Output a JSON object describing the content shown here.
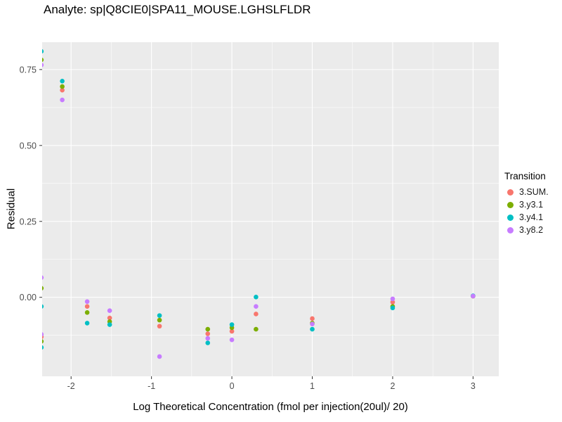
{
  "header": {
    "title": "Analyte: sp|Q8CIE0|SPA11_MOUSE.LGHSLFLDR"
  },
  "chart_data": {
    "type": "scatter",
    "title": "Analyte: sp|Q8CIE0|SPA11_MOUSE.LGHSLFLDR",
    "xlabel": "Log Theoretical Concentration (fmol per injection(20ul)/ 20)",
    "ylabel": "Residual",
    "x_domain": [
      -2.36,
      3.32
    ],
    "y_domain": [
      -0.26,
      0.84
    ],
    "x_ticks": [
      -2,
      -1,
      0,
      1,
      2,
      3
    ],
    "x_tick_labels": [
      "-2",
      "-1",
      "0",
      "1",
      "2",
      "3"
    ],
    "x_minor_ticks": [
      -1.5,
      -0.5,
      0.5,
      1.5,
      2.5
    ],
    "y_ticks": [
      0.0,
      0.25,
      0.5,
      0.75
    ],
    "y_tick_labels": [
      "0.00",
      "0.25",
      "0.50",
      "0.75"
    ],
    "y_minor_ticks": [
      -0.125,
      0.125,
      0.375,
      0.625
    ],
    "grid": true,
    "panel_bg": "#EBEBEB",
    "grid_color": "#FFFFFF",
    "tick_label_color": "#4D4D4D",
    "tick_mark_color": "#333333",
    "legend": {
      "title": "Transition",
      "position": "right"
    },
    "series": [
      {
        "name": "3.SUM.",
        "color": "#F8766D",
        "points": [
          [
            -2.11,
            0.682
          ],
          [
            -2.37,
            -0.13
          ],
          [
            -1.8,
            -0.03
          ],
          [
            -1.52,
            -0.068
          ],
          [
            -0.9,
            -0.095
          ],
          [
            -0.3,
            -0.12
          ],
          [
            0.0,
            -0.112
          ],
          [
            0.3,
            -0.055
          ],
          [
            1.0,
            -0.07
          ],
          [
            2.0,
            -0.016
          ],
          [
            3.0,
            0.004
          ]
        ]
      },
      {
        "name": "3.y3.1",
        "color": "#7CAE00",
        "points": [
          [
            -2.37,
            0.782
          ],
          [
            -2.11,
            0.694
          ],
          [
            -2.37,
            0.03
          ],
          [
            -2.37,
            -0.145
          ],
          [
            -1.8,
            -0.05
          ],
          [
            -1.52,
            -0.08
          ],
          [
            -0.9,
            -0.075
          ],
          [
            -0.3,
            -0.105
          ],
          [
            0.0,
            -0.1
          ],
          [
            0.3,
            -0.105
          ],
          [
            1.0,
            -0.085
          ],
          [
            2.0,
            -0.03
          ],
          [
            3.0,
            0.004
          ]
        ]
      },
      {
        "name": "3.y4.1",
        "color": "#00BFC4",
        "points": [
          [
            -2.37,
            0.81
          ],
          [
            -2.11,
            0.712
          ],
          [
            -2.37,
            -0.03
          ],
          [
            -2.37,
            -0.165
          ],
          [
            -1.8,
            -0.085
          ],
          [
            -1.52,
            -0.09
          ],
          [
            -0.9,
            -0.06
          ],
          [
            -0.3,
            -0.15
          ],
          [
            0.0,
            -0.09
          ],
          [
            0.3,
            0.001
          ],
          [
            1.0,
            -0.105
          ],
          [
            2.0,
            -0.035
          ],
          [
            3.0,
            0.005
          ]
        ]
      },
      {
        "name": "3.y8.2",
        "color": "#C77CFF",
        "points": [
          [
            -2.37,
            0.765
          ],
          [
            -2.11,
            0.65
          ],
          [
            -2.37,
            0.065
          ],
          [
            -2.37,
            -0.122
          ],
          [
            -1.8,
            -0.014
          ],
          [
            -1.52,
            -0.044
          ],
          [
            -0.9,
            -0.195
          ],
          [
            -0.3,
            -0.135
          ],
          [
            0.0,
            -0.14
          ],
          [
            0.3,
            -0.03
          ],
          [
            1.0,
            -0.088
          ],
          [
            2.0,
            -0.005
          ],
          [
            3.0,
            0.004
          ]
        ]
      }
    ]
  }
}
